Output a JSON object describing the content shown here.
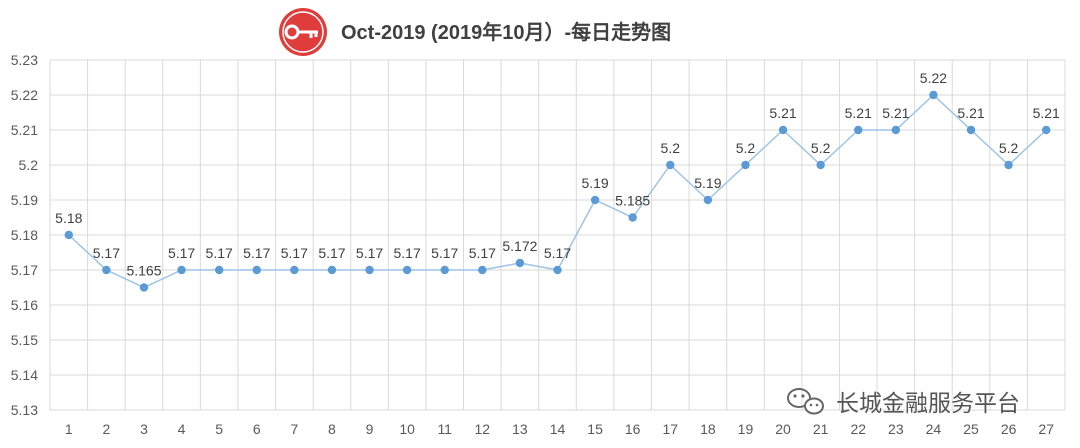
{
  "chart_data": {
    "type": "line",
    "title": "Oct-2019 (2019年10月）-每日走势图",
    "xlabel": "",
    "ylabel": "",
    "categories": [
      "1",
      "2",
      "3",
      "4",
      "5",
      "6",
      "7",
      "8",
      "9",
      "10",
      "11",
      "12",
      "13",
      "14",
      "15",
      "16",
      "17",
      "18",
      "19",
      "20",
      "21",
      "22",
      "23",
      "24",
      "25",
      "26",
      "27"
    ],
    "values": [
      5.18,
      5.17,
      5.165,
      5.17,
      5.17,
      5.17,
      5.17,
      5.17,
      5.17,
      5.17,
      5.17,
      5.17,
      5.172,
      5.17,
      5.19,
      5.185,
      5.2,
      5.19,
      5.2,
      5.21,
      5.2,
      5.21,
      5.21,
      5.22,
      5.21,
      5.2,
      5.21
    ],
    "data_labels": [
      "5.18",
      "5.17",
      "5.165",
      "5.17",
      "5.17",
      "5.17",
      "5.17",
      "5.17",
      "5.17",
      "5.17",
      "5.17",
      "5.17",
      "5.172",
      "5.17",
      "5.19",
      "5.185",
      "5.2",
      "5.19",
      "5.2",
      "5.21",
      "5.2",
      "5.21",
      "5.21",
      "5.22",
      "5.21",
      "5.2",
      "5.21"
    ],
    "yticks": [
      "5.13",
      "5.14",
      "5.15",
      "5.16",
      "5.17",
      "5.18",
      "5.19",
      "5.2",
      "5.21",
      "5.22",
      "5.23"
    ],
    "ylim": [
      5.13,
      5.23
    ],
    "grid": true,
    "legend": "none",
    "line_color": "#9dc3e6",
    "marker_color": "#5b9bd5",
    "title_icon": "key-icon",
    "title_icon_color": "#e03c3c"
  },
  "watermark": {
    "text": "长城金融服务平台",
    "icon": "wechat-icon"
  }
}
